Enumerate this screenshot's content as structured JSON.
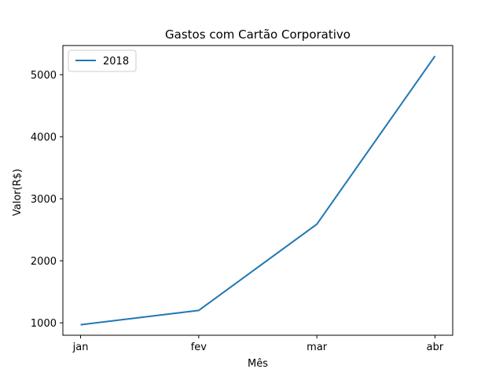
{
  "chart_data": {
    "type": "line",
    "title": "Gastos com Cartão Corporativo",
    "xlabel": "Mês",
    "ylabel": "Valor(R$)",
    "categories": [
      "jan",
      "fev",
      "mar",
      "abr"
    ],
    "series": [
      {
        "name": "2018",
        "values": [
          970,
          1200,
          2590,
          5300
        ],
        "color": "#1f77b4"
      }
    ],
    "ylim": [
      800,
      5470
    ],
    "yticks": [
      1000,
      2000,
      3000,
      4000,
      5000
    ],
    "grid": false,
    "legend": "top-left"
  }
}
